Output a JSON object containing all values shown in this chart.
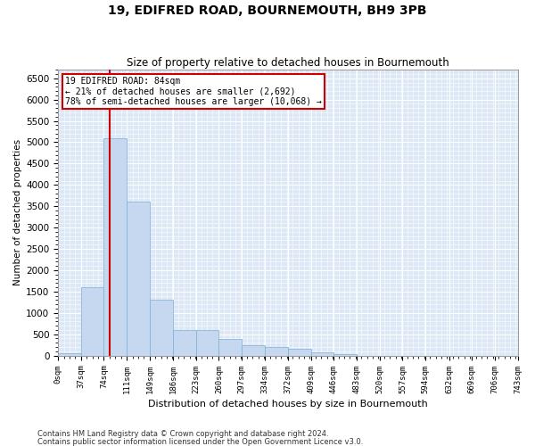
{
  "title": "19, EDIFRED ROAD, BOURNEMOUTH, BH9 3PB",
  "subtitle": "Size of property relative to detached houses in Bournemouth",
  "xlabel": "Distribution of detached houses by size in Bournemouth",
  "ylabel": "Number of detached properties",
  "footnote1": "Contains HM Land Registry data © Crown copyright and database right 2024.",
  "footnote2": "Contains public sector information licensed under the Open Government Licence v3.0.",
  "annotation_line1": "19 EDIFRED ROAD: 84sqm",
  "annotation_line2": "← 21% of detached houses are smaller (2,692)",
  "annotation_line3": "78% of semi-detached houses are larger (10,068) →",
  "property_size": 84,
  "bar_color": "#c5d8ef",
  "bar_edge_color": "#7badd4",
  "background_color": "#dce8f5",
  "grid_color": "#ffffff",
  "vline_color": "#cc0000",
  "annotation_box_color": "#cc0000",
  "bin_edges": [
    0,
    37,
    74,
    111,
    149,
    186,
    223,
    260,
    297,
    334,
    372,
    409,
    446,
    483,
    520,
    557,
    594,
    632,
    669,
    706,
    743
  ],
  "bar_heights": [
    50,
    1600,
    5100,
    3600,
    1300,
    600,
    600,
    380,
    250,
    200,
    160,
    70,
    30,
    0,
    0,
    0,
    0,
    0,
    0,
    0
  ],
  "ylim": [
    0,
    6700
  ],
  "yticks": [
    0,
    500,
    1000,
    1500,
    2000,
    2500,
    3000,
    3500,
    4000,
    4500,
    5000,
    5500,
    6000,
    6500
  ]
}
